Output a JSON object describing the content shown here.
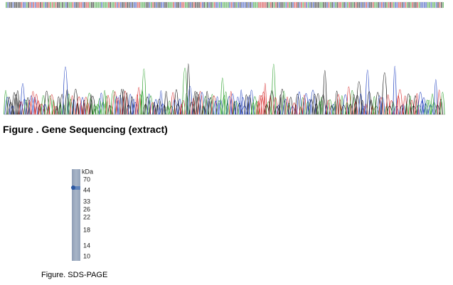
{
  "figure1": {
    "caption": "Figure . Gene Sequencing (extract)"
  },
  "figure2": {
    "unit": "kDa",
    "markers": [
      70,
      44,
      33,
      26,
      22,
      18,
      14,
      10
    ],
    "caption": "Figure. SDS-PAGE"
  }
}
